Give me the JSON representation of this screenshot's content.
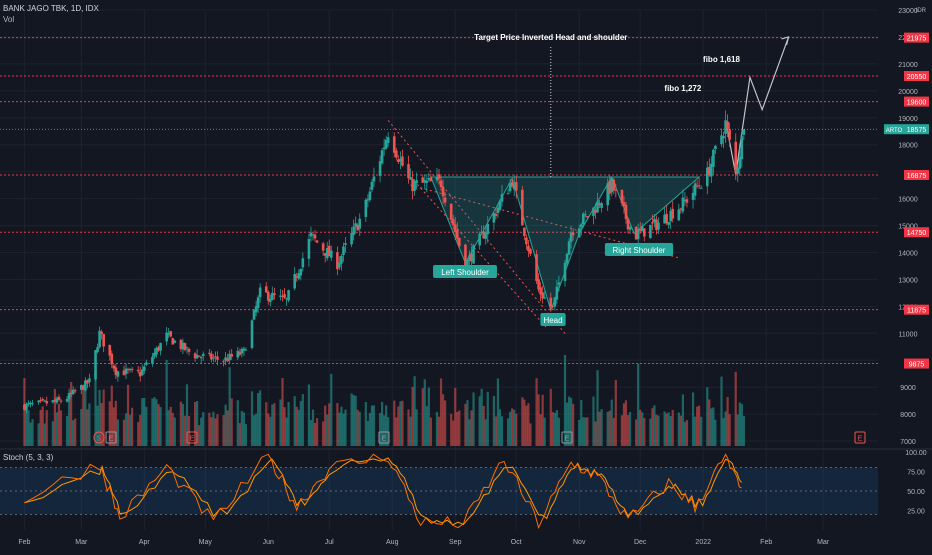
{
  "header": {
    "symbol_line": "BANK JAGO TBK, 1D, IDX",
    "vol_label": "Vol"
  },
  "price_axis": {
    "currency": "IDR",
    "ticks": [
      "23000",
      "22000",
      "21000",
      "20000",
      "19000",
      "18000",
      "16000",
      "15000",
      "14000",
      "13000",
      "12000",
      "11000",
      "9000",
      "8000",
      "7000"
    ]
  },
  "levels": [
    {
      "label": "21975",
      "value": 21975
    },
    {
      "label": "20550",
      "value": 20550
    },
    {
      "label": "19600",
      "value": 19600
    },
    {
      "label": "16875",
      "value": 16875
    },
    {
      "label": "14750",
      "value": 14750
    },
    {
      "label": "11875",
      "value": 11875
    },
    {
      "label": "9875",
      "value": 9875
    }
  ],
  "current_price": {
    "symbol": "ARTO",
    "value": "18575"
  },
  "annotations": {
    "target": "Target Price Inverted Head and shoulder",
    "fibo_1618": "fibo 1,618",
    "fibo_1272": "fibo 1,272",
    "left_shoulder": "Left Shoulder",
    "head": "Head",
    "right_shoulder": "Right Shoulder"
  },
  "time_axis": [
    "Feb",
    "Mar",
    "Apr",
    "May",
    "Jun",
    "Jul",
    "Aug",
    "Sep",
    "Oct",
    "Nov",
    "Dec",
    "2022",
    "Feb",
    "Mar"
  ],
  "events": [
    "S",
    "E",
    "E",
    "E",
    "E",
    "E"
  ],
  "stoch": {
    "title": "Stoch (5, 3, 3)",
    "ticks": [
      "100.00",
      "75.00",
      "50.00",
      "25.00"
    ],
    "upper": 80,
    "lower": 20
  },
  "colors": {
    "up": "#26a69a",
    "down": "#ef5350",
    "level": "#f23645",
    "background": "#131722",
    "k_line": "#ff6d00",
    "d_line": "#ff9800"
  },
  "chart_data": {
    "type": "candlestick",
    "symbol": "ARTO",
    "exchange": "IDX",
    "interval": "1D",
    "anchors_price": [
      [
        "2021-02-01",
        8300
      ],
      [
        "2021-02-20",
        8500
      ],
      [
        "2021-03-05",
        9200
      ],
      [
        "2021-03-10",
        11000
      ],
      [
        "2021-03-18",
        9600
      ],
      [
        "2021-03-30",
        9500
      ],
      [
        "2021-04-12",
        10900
      ],
      [
        "2021-04-25",
        10200
      ],
      [
        "2021-05-10",
        10000
      ],
      [
        "2021-05-20",
        10300
      ],
      [
        "2021-05-28",
        12500
      ],
      [
        "2021-06-10",
        12200
      ],
      [
        "2021-06-22",
        14600
      ],
      [
        "2021-07-05",
        13600
      ],
      [
        "2021-07-18",
        15500
      ],
      [
        "2021-07-30",
        18500
      ],
      [
        "2021-08-10",
        16500
      ],
      [
        "2021-08-25",
        16600
      ],
      [
        "2021-09-06",
        13500
      ],
      [
        "2021-09-20",
        15400
      ],
      [
        "2021-09-29",
        16700
      ],
      [
        "2021-10-12",
        12600
      ],
      [
        "2021-10-19",
        11900
      ],
      [
        "2021-10-28",
        14800
      ],
      [
        "2021-11-08",
        15600
      ],
      [
        "2021-11-17",
        16500
      ],
      [
        "2021-11-28",
        14600
      ],
      [
        "2021-12-10",
        15100
      ],
      [
        "2021-12-22",
        15800
      ],
      [
        "2022-01-03",
        16900
      ],
      [
        "2022-01-12",
        18800
      ],
      [
        "2022-01-17",
        16900
      ],
      [
        "2022-01-21",
        18575
      ]
    ],
    "stoch_k_anchors": [
      [
        "2021-02-01",
        40
      ],
      [
        "2021-03-10",
        85
      ],
      [
        "2021-03-20",
        15
      ],
      [
        "2021-04-12",
        80
      ],
      [
        "2021-05-05",
        10
      ],
      [
        "2021-06-01",
        95
      ],
      [
        "2021-06-15",
        30
      ],
      [
        "2021-07-01",
        80
      ],
      [
        "2021-07-30",
        95
      ],
      [
        "2021-08-15",
        10
      ],
      [
        "2021-09-05",
        8
      ],
      [
        "2021-09-25",
        90
      ],
      [
        "2021-10-12",
        8
      ],
      [
        "2021-10-28",
        85
      ],
      [
        "2021-11-10",
        70
      ],
      [
        "2021-11-25",
        12
      ],
      [
        "2021-12-15",
        60
      ],
      [
        "2021-12-28",
        30
      ],
      [
        "2022-01-12",
        95
      ],
      [
        "2022-01-21",
        40
      ]
    ],
    "volume_relative": "low in Feb–May, spikes in Mar, Jun, Aug, Sep, Oct and Jan 2022",
    "ylim": [
      7000,
      23000
    ]
  }
}
